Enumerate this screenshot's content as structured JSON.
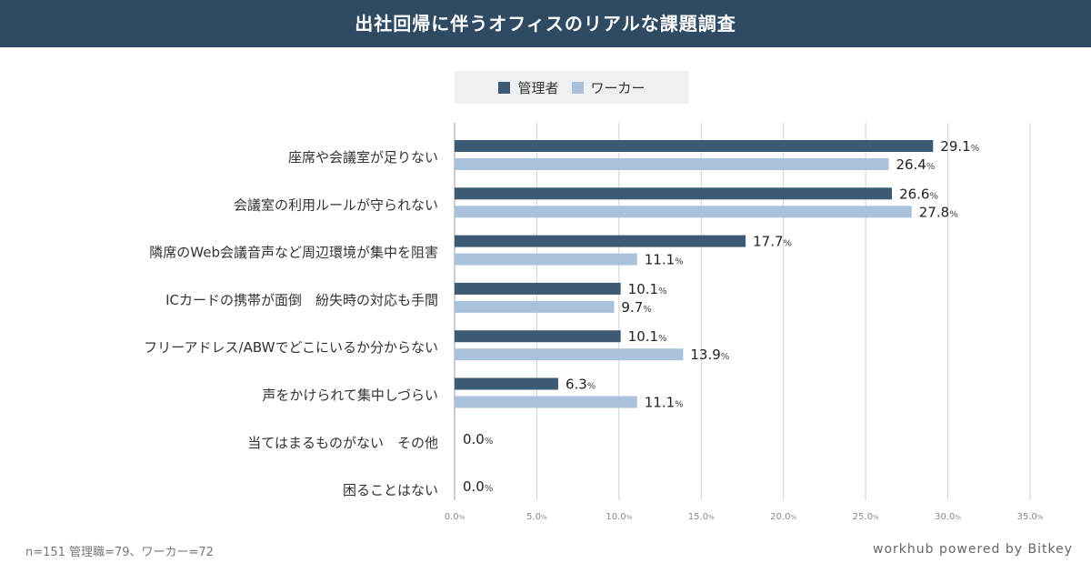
{
  "header": {
    "title": "出社回帰に伴うオフィスのリアルな課題調査"
  },
  "footnote": "n=151 管理職=79、ワーカー=72",
  "brand": "workhub powered by Bitkey",
  "chart_data": {
    "type": "bar",
    "orientation": "horizontal",
    "categories": [
      "座席や会議室が足りない",
      "会議室の利用ルールが守られない",
      "隣席のWeb会議音声など周辺環境が集中を阻害",
      "ICカードの携帯が面倒　紛失時の対応も手間",
      "フリーアドレス/ABWでどこにいるか分からない",
      "声をかけられて集中しづらい",
      "当てはまるものがない　その他",
      "困ることはない"
    ],
    "series": [
      {
        "name": "管理者",
        "color": "#3d5a75",
        "values": [
          29.1,
          26.6,
          17.7,
          10.1,
          10.1,
          6.3,
          0.0,
          0.0
        ]
      },
      {
        "name": "ワーカー",
        "color": "#a9c1da",
        "values": [
          26.4,
          27.8,
          11.1,
          9.7,
          13.9,
          11.1,
          0.0,
          0.0
        ]
      }
    ],
    "xlim": [
      0,
      35
    ],
    "xticks": [
      "0.0",
      "5.0",
      "10.0",
      "15.0",
      "20.0",
      "25.0",
      "30.0",
      "35.0"
    ],
    "unit": "%",
    "grid": true,
    "legend": "top"
  }
}
